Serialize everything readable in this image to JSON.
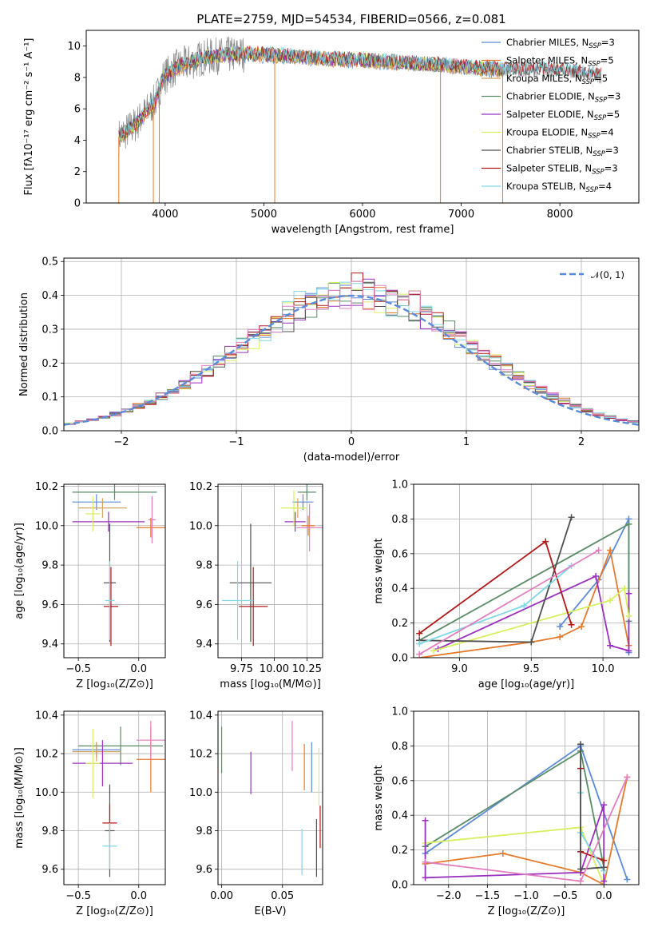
{
  "figure_title": "PLATE=2759, MJD=54534, FIBERID=0566, z=0.081",
  "colors": {
    "Chabrier MILES": "#5b8bd8",
    "Salpeter MILES": "#e67a2a",
    "Kroupa MILES": "#d4a45a",
    "Chabrier ELODIE": "#5a8c68",
    "Salpeter ELODIE": "#9b30c0",
    "Kroupa ELODIE": "#d8f060",
    "Chabrier STELIB": "#505050",
    "Salpeter STELIB": "#b21818",
    "Kroupa STELIB": "#7fd8e6",
    "pink": "#e27ec0"
  },
  "chart_data": [
    {
      "id": "spectrum",
      "type": "line",
      "title": "PLATE=2759, MJD=54534, FIBERID=0566, z=0.081",
      "xlabel": "wavelength [Angstrom, rest frame]",
      "ylabel": "Flux [fλ10⁻¹⁷ erg cm⁻² s⁻¹ A⁻¹]",
      "xlim": [
        3200,
        8800
      ],
      "ylim": [
        0,
        11
      ],
      "xticks": [
        4000,
        5000,
        6000,
        7000,
        8000
      ],
      "yticks": [
        0,
        2,
        4,
        6,
        8,
        10
      ],
      "legend_position": "top-right",
      "legend": [
        "Chabrier MILES, N_SSP=3",
        "Salpeter MILES, N_SSP=5",
        "Kroupa MILES, N_SSP=5",
        "Chabrier ELODIE, N_SSP=3",
        "Salpeter ELODIE, N_SSP=5",
        "Kroupa ELODIE, N_SSP=4",
        "Chabrier STELIB, N_SSP=3",
        "Salpeter STELIB, N_SSP=3",
        "Kroupa STELIB, N_SSP=4"
      ],
      "continuum": [
        [
          3530,
          4.2
        ],
        [
          3700,
          5.0
        ],
        [
          3900,
          6.5
        ],
        [
          3980,
          8.0
        ],
        [
          4100,
          8.6
        ],
        [
          4400,
          9.3
        ],
        [
          4800,
          9.5
        ],
        [
          5200,
          9.4
        ],
        [
          5600,
          9.2
        ],
        [
          6000,
          9.1
        ],
        [
          6500,
          8.9
        ],
        [
          7000,
          8.7
        ],
        [
          7400,
          8.5
        ],
        [
          7900,
          8.5
        ],
        [
          8200,
          8.3
        ],
        [
          8400,
          8.1
        ]
      ],
      "spike_wavelengths": [
        3530,
        3880,
        3940,
        5110,
        6790,
        7420
      ]
    },
    {
      "id": "residual_histogram",
      "type": "bar",
      "xlabel": "(data-model)/error",
      "ylabel": "Normed distribution",
      "xlim": [
        -2.5,
        2.5
      ],
      "ylim": [
        0,
        0.51
      ],
      "xticks": [
        -2,
        -1,
        0,
        1,
        2
      ],
      "yticks": [
        0.0,
        0.1,
        0.2,
        0.3,
        0.4,
        0.5
      ],
      "legend_position": "top-right",
      "legend": [
        "𝒩(0, 1)"
      ],
      "bin_width": 0.1,
      "reference_curve": "normal pdf, mean 0, sigma 1"
    },
    {
      "id": "age_vs_Z",
      "type": "scatter",
      "xlabel": "Z [log₁₀(Z/Z⊙)]",
      "ylabel": "age [log₁₀(age/yr)]",
      "xlim": [
        -0.62,
        0.22
      ],
      "ylim": [
        9.33,
        10.21
      ],
      "xticks": [
        -0.5,
        0.0
      ],
      "yticks": [
        9.4,
        9.6,
        9.8,
        10.0,
        10.2
      ],
      "points": [
        {
          "model": "Chabrier MILES",
          "x": -0.35,
          "xerr": 0.2,
          "y": 10.12,
          "yerr": 0.04
        },
        {
          "model": "Kroupa MILES",
          "x": -0.3,
          "xerr": 0.2,
          "y": 10.09,
          "yerr": 0.05
        },
        {
          "model": "Chabrier ELODIE",
          "x": -0.2,
          "xerr": 0.35,
          "y": 10.17,
          "yerr": 0.04
        },
        {
          "model": "Salpeter ELODIE",
          "x": -0.25,
          "xerr": 0.3,
          "y": 10.02,
          "yerr": 0.05
        },
        {
          "model": "Kroupa ELODIE",
          "x": -0.38,
          "xerr": 0.06,
          "y": 10.06,
          "yerr": 0.09
        },
        {
          "model": "Salpeter MILES",
          "x": 0.1,
          "xerr": 0.12,
          "y": 9.99,
          "yerr": 0.05
        },
        {
          "model": "pink",
          "x": 0.11,
          "xerr": 0.03,
          "y": 10.03,
          "yerr": 0.12
        },
        {
          "model": "Chabrier STELIB",
          "x": -0.24,
          "xerr": 0.05,
          "y": 9.71,
          "yerr": 0.3
        },
        {
          "model": "Salpeter STELIB",
          "x": -0.23,
          "xerr": 0.06,
          "y": 9.59,
          "yerr": 0.2
        },
        {
          "model": "Kroupa STELIB",
          "x": -0.24,
          "xerr": 0.04,
          "y": 9.62,
          "yerr": 0.2
        }
      ]
    },
    {
      "id": "age_vs_mass",
      "type": "scatter",
      "xlabel": "mass [log₁₀(M/M⊙)]",
      "ylabel": "",
      "xlim": [
        9.57,
        10.37
      ],
      "ylim": [
        9.33,
        10.21
      ],
      "xticks": [
        9.75,
        10.0,
        10.25
      ],
      "yticks": [
        9.4,
        9.6,
        9.8,
        10.0,
        10.2
      ],
      "points": [
        {
          "model": "Chabrier MILES",
          "x": 10.22,
          "xerr": 0.08,
          "y": 10.12,
          "yerr": 0.04
        },
        {
          "model": "Kroupa MILES",
          "x": 10.18,
          "xerr": 0.06,
          "y": 10.09,
          "yerr": 0.05
        },
        {
          "model": "Chabrier ELODIE",
          "x": 10.25,
          "xerr": 0.07,
          "y": 10.17,
          "yerr": 0.04
        },
        {
          "model": "Salpeter ELODIE",
          "x": 10.16,
          "xerr": 0.08,
          "y": 10.02,
          "yerr": 0.05
        },
        {
          "model": "Kroupa ELODIE",
          "x": 10.15,
          "xerr": 0.1,
          "y": 10.09,
          "yerr": 0.09
        },
        {
          "model": "Salpeter MILES",
          "x": 10.26,
          "xerr": 0.05,
          "y": 10.0,
          "yerr": 0.05
        },
        {
          "model": "pink",
          "x": 10.27,
          "xerr": 0.1,
          "y": 9.99,
          "yerr": 0.12
        },
        {
          "model": "Chabrier STELIB",
          "x": 9.82,
          "xerr": 0.16,
          "y": 9.71,
          "yerr": 0.3
        },
        {
          "model": "Salpeter STELIB",
          "x": 9.84,
          "xerr": 0.11,
          "y": 9.59,
          "yerr": 0.2
        },
        {
          "model": "Kroupa STELIB",
          "x": 9.72,
          "xerr": 0.12,
          "y": 9.62,
          "yerr": 0.2
        }
      ]
    },
    {
      "id": "mass_weight_vs_age",
      "type": "line",
      "xlabel": "age [log₁₀(age/yr)]",
      "ylabel": "mass weight",
      "xlim": [
        8.68,
        10.25
      ],
      "ylim": [
        0,
        1.0
      ],
      "xticks": [
        9.0,
        9.5,
        10.0
      ],
      "yticks": [
        0.0,
        0.2,
        0.4,
        0.6,
        0.8,
        1.0
      ],
      "series": [
        {
          "model": "Chabrier MILES",
          "x": [
            9.7,
            9.97,
            10.18,
            10.18
          ],
          "y": [
            0.18,
            0.45,
            0.8,
            0.03
          ]
        },
        {
          "model": "Salpeter MILES",
          "x": [
            8.72,
            9.5,
            9.7,
            9.85,
            10.05,
            10.18
          ],
          "y": [
            0.0,
            0.09,
            0.12,
            0.18,
            0.62,
            0.07
          ]
        },
        {
          "model": "Chabrier ELODIE",
          "x": [
            8.72,
            10.18,
            10.18
          ],
          "y": [
            0.1,
            0.77,
            0.21
          ]
        },
        {
          "model": "Salpeter ELODIE",
          "x": [
            8.85,
            9.95,
            10.05,
            10.18,
            10.18
          ],
          "y": [
            0.05,
            0.47,
            0.07,
            0.04,
            0.37
          ]
        },
        {
          "model": "Kroupa ELODIE",
          "x": [
            8.82,
            10.05,
            10.15,
            10.18
          ],
          "y": [
            0.04,
            0.33,
            0.4,
            0.24
          ]
        },
        {
          "model": "Chabrier STELIB",
          "x": [
            8.72,
            9.5,
            9.78
          ],
          "y": [
            0.1,
            0.09,
            0.81
          ]
        },
        {
          "model": "Salpeter STELIB",
          "x": [
            8.72,
            9.6,
            9.78
          ],
          "y": [
            0.14,
            0.67,
            0.19
          ]
        },
        {
          "model": "Kroupa STELIB",
          "x": [
            8.72,
            9.45,
            9.78
          ],
          "y": [
            0.08,
            0.3,
            0.53
          ]
        },
        {
          "model": "pink",
          "x": [
            8.72,
            9.97
          ],
          "y": [
            0.02,
            0.62
          ]
        }
      ]
    },
    {
      "id": "mass_vs_Z",
      "type": "scatter",
      "xlabel": "Z [log₁₀(Z/Z⊙)]",
      "ylabel": "mass [log₁₀(M/M⊙)]",
      "xlim": [
        -0.62,
        0.22
      ],
      "ylim": [
        9.52,
        10.42
      ],
      "xticks": [
        -0.5,
        0.0
      ],
      "yticks": [
        9.6,
        9.8,
        10.0,
        10.2,
        10.4
      ],
      "points": [
        {
          "model": "Chabrier MILES",
          "x": -0.35,
          "xerr": 0.2,
          "y": 10.22,
          "yerr": 0.04
        },
        {
          "model": "Chabrier ELODIE",
          "x": -0.15,
          "xerr": 0.35,
          "y": 10.24,
          "yerr": 0.1
        },
        {
          "model": "Kroupa MILES",
          "x": -0.35,
          "xerr": 0.2,
          "y": 10.21,
          "yerr": 0.05
        },
        {
          "model": "Salpeter ELODIE",
          "x": -0.3,
          "xerr": 0.25,
          "y": 10.15,
          "yerr": 0.12
        },
        {
          "model": "Kroupa ELODIE",
          "x": -0.38,
          "xerr": 0.06,
          "y": 10.15,
          "yerr": 0.18
        },
        {
          "model": "Salpeter MILES",
          "x": 0.1,
          "xerr": 0.12,
          "y": 10.17,
          "yerr": 0.17
        },
        {
          "model": "pink",
          "x": 0.1,
          "xerr": 0.12,
          "y": 10.27,
          "yerr": 0.1
        },
        {
          "model": "Chabrier STELIB",
          "x": -0.24,
          "xerr": 0.04,
          "y": 9.8,
          "yerr": 0.24
        },
        {
          "model": "Salpeter STELIB",
          "x": -0.24,
          "xerr": 0.06,
          "y": 9.84,
          "yerr": 0.1
        },
        {
          "model": "Kroupa STELIB",
          "x": -0.24,
          "xerr": 0.06,
          "y": 9.72,
          "yerr": 0.12
        }
      ]
    },
    {
      "id": "mass_vs_ebv",
      "type": "scatter",
      "xlabel": "E(B-V)",
      "ylabel": "",
      "xlim": [
        -0.003,
        0.083
      ],
      "ylim": [
        9.52,
        10.42
      ],
      "xticks": [
        0.0,
        0.05
      ],
      "yticks": [
        9.6,
        9.8,
        10.0,
        10.2,
        10.4
      ],
      "points": [
        {
          "model": "Chabrier ELODIE",
          "x": 0.0,
          "xerr": 0.0,
          "y": 10.22,
          "yerr": 0.12
        },
        {
          "model": "Salpeter ELODIE",
          "x": 0.024,
          "xerr": 0.0,
          "y": 10.1,
          "yerr": 0.11
        },
        {
          "model": "pink",
          "x": 0.058,
          "xerr": 0.0,
          "y": 10.24,
          "yerr": 0.13
        },
        {
          "model": "Kroupa STELIB",
          "x": 0.066,
          "xerr": 0.0,
          "y": 9.69,
          "yerr": 0.12
        },
        {
          "model": "Salpeter MILES",
          "x": 0.068,
          "xerr": 0.0,
          "y": 10.13,
          "yerr": 0.12
        },
        {
          "model": "Chabrier MILES",
          "x": 0.074,
          "xerr": 0.0,
          "y": 10.13,
          "yerr": 0.13
        },
        {
          "model": "Chabrier STELIB",
          "x": 0.078,
          "xerr": 0.0,
          "y": 9.71,
          "yerr": 0.15
        },
        {
          "model": "Kroupa ELODIE",
          "x": 0.08,
          "xerr": 0.0,
          "y": 10.08,
          "yerr": 0.15
        },
        {
          "model": "Salpeter STELIB",
          "x": 0.081,
          "xerr": 0.0,
          "y": 9.82,
          "yerr": 0.11
        }
      ]
    },
    {
      "id": "mass_weight_vs_Z",
      "type": "line",
      "xlabel": "Z [log₁₀(Z/Z⊙)]",
      "ylabel": "mass weight",
      "xlim": [
        -2.45,
        0.45
      ],
      "ylim": [
        0,
        1.0
      ],
      "xticks": [
        -2.0,
        -1.5,
        -1.0,
        -0.5,
        0.0
      ],
      "yticks": [
        0.0,
        0.2,
        0.4,
        0.6,
        0.8,
        1.0
      ],
      "series": [
        {
          "model": "Chabrier MILES",
          "x": [
            -2.3,
            -0.3,
            0.3
          ],
          "y": [
            0.18,
            0.8,
            0.03
          ]
        },
        {
          "model": "Chabrier ELODIE",
          "x": [
            -2.3,
            -0.3,
            0.0
          ],
          "y": [
            0.22,
            0.77,
            0.1
          ]
        },
        {
          "model": "Salpeter MILES",
          "x": [
            -2.3,
            -1.3,
            -0.3,
            0.0,
            0.3
          ],
          "y": [
            0.12,
            0.18,
            0.07,
            0.0,
            0.62
          ]
        },
        {
          "model": "Kroupa ELODIE",
          "x": [
            -2.3,
            -0.3,
            0.0
          ],
          "y": [
            0.24,
            0.33,
            0.0
          ]
        },
        {
          "model": "Salpeter ELODIE",
          "x": [
            -2.3,
            -2.3,
            -0.3,
            0.0,
            0.0
          ],
          "y": [
            0.37,
            0.04,
            0.07,
            0.46,
            0.02
          ]
        },
        {
          "model": "Salpeter STELIB",
          "x": [
            -0.3,
            -0.3,
            0.0
          ],
          "y": [
            0.67,
            0.19,
            0.14
          ]
        },
        {
          "model": "Kroupa STELIB",
          "x": [
            -0.3,
            -0.3,
            0.0
          ],
          "y": [
            0.53,
            0.3,
            0.08
          ]
        },
        {
          "model": "Chabrier STELIB",
          "x": [
            -0.3,
            -0.3,
            0.0
          ],
          "y": [
            0.81,
            0.09,
            0.1
          ]
        },
        {
          "model": "pink",
          "x": [
            -2.3,
            -0.3,
            0.3
          ],
          "y": [
            0.13,
            0.02,
            0.62
          ]
        }
      ]
    }
  ]
}
